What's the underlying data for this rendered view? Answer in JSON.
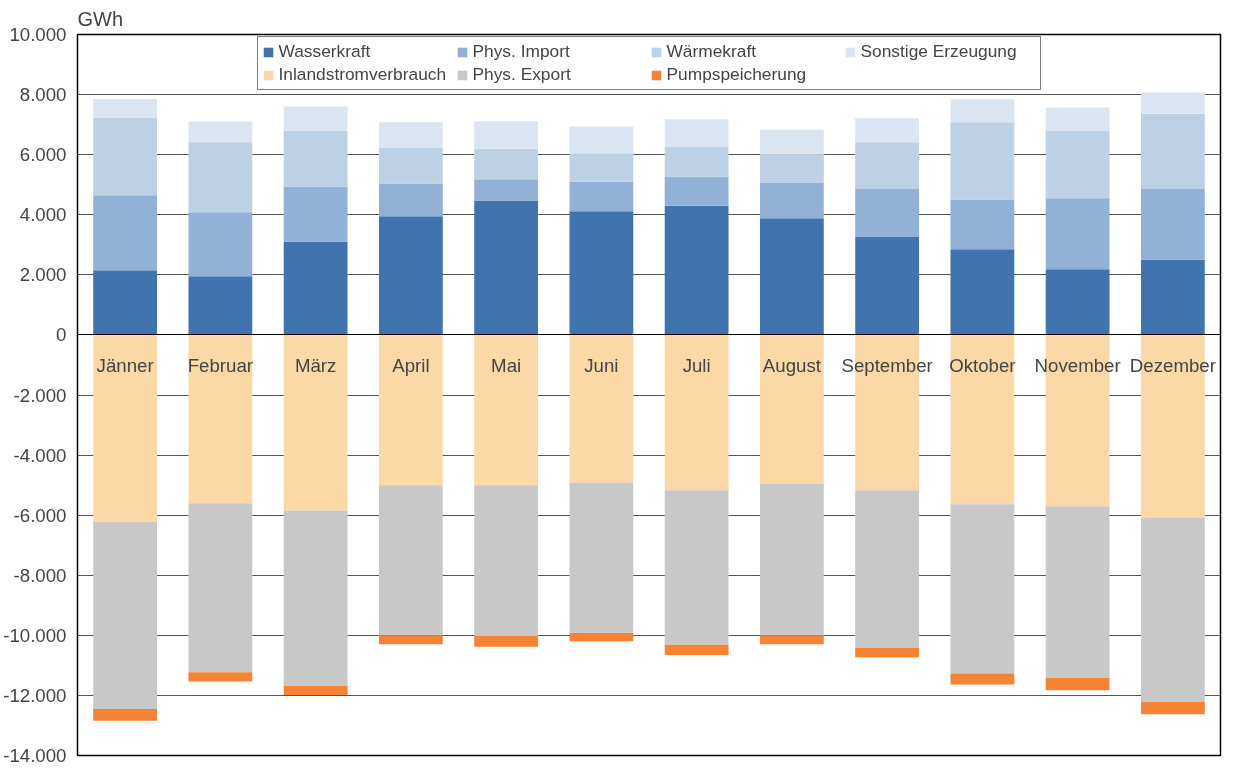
{
  "chart_data": {
    "type": "bar",
    "stacked": true,
    "ylabel": "GWh",
    "categories": [
      "Jänner",
      "Februar",
      "März",
      "April",
      "Mai",
      "Juni",
      "Juli",
      "August",
      "September",
      "Oktober",
      "November",
      "Dezember"
    ],
    "series": [
      {
        "name": "Wasserkraft",
        "color": "#4174ae",
        "values": [
          2150,
          1950,
          3100,
          3950,
          4475,
          4120,
          4300,
          3880,
          3280,
          2850,
          2185,
          2500
        ]
      },
      {
        "name": "Phys. Import",
        "color": "#91b1d6",
        "values": [
          2500,
          2135,
          1840,
          1090,
          705,
          980,
          975,
          1190,
          1580,
          1660,
          2365,
          2360
        ]
      },
      {
        "name": "Wärmekraft",
        "color": "#bcd0e6",
        "values": [
          2570,
          2325,
          1860,
          1200,
          1020,
          950,
          995,
          930,
          1550,
          2570,
          2250,
          2505
        ]
      },
      {
        "name": "Sonstige Erzeugung",
        "color": "#dbe5f1",
        "values": [
          630,
          690,
          800,
          840,
          915,
          890,
          910,
          830,
          805,
          765,
          770,
          705
        ]
      },
      {
        "name": "Inlandstromverbrauch",
        "color": "#fad9a6",
        "values": [
          -6230,
          -5600,
          -5850,
          -5000,
          -5000,
          -4920,
          -5170,
          -4960,
          -5170,
          -5640,
          -5700,
          -6080
        ]
      },
      {
        "name": "Phys. Export",
        "color": "#c8c8c8",
        "values": [
          -6220,
          -5630,
          -5840,
          -5000,
          -5025,
          -5005,
          -5145,
          -5040,
          -5245,
          -5630,
          -5710,
          -6135
        ]
      },
      {
        "name": "Pumpspeicherung",
        "color": "#f68233",
        "values": [
          -390,
          -305,
          -300,
          -300,
          -355,
          -275,
          -340,
          -300,
          -315,
          -365,
          -415,
          -415
        ]
      }
    ],
    "ylim": [
      -14000,
      10000
    ],
    "yticks": [
      {
        "value": -14000,
        "label": "-14.000"
      },
      {
        "value": -12000,
        "label": "-12.000"
      },
      {
        "value": -10000,
        "label": "-10.000"
      },
      {
        "value": -8000,
        "label": "-8.000"
      },
      {
        "value": -6000,
        "label": "-6.000"
      },
      {
        "value": -4000,
        "label": "-4.000"
      },
      {
        "value": -2000,
        "label": "-2.000"
      },
      0,
      {
        "value": 2000,
        "label": "2.000"
      },
      {
        "value": 4000,
        "label": "4.000"
      },
      {
        "value": 6000,
        "label": "6.000"
      },
      {
        "value": 8000,
        "label": "8.000"
      },
      {
        "value": 10000,
        "label": "10.000"
      }
    ],
    "grid": "y",
    "legend": "top"
  }
}
